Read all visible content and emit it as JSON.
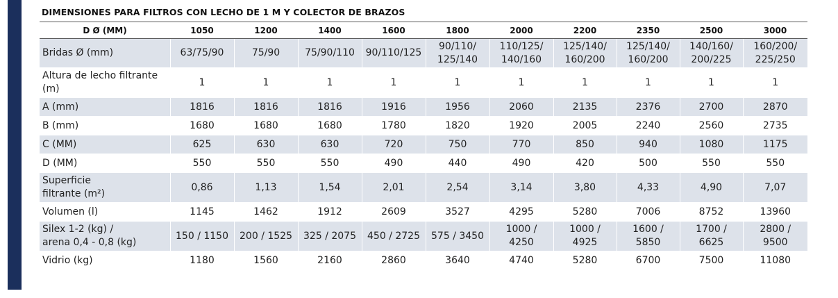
{
  "title": "DIMENSIONES PARA FILTROS CON LECHO DE 1 M Y COLECTOR DE BRAZOS",
  "header": {
    "label": "D Ø (MM)",
    "diameters": [
      "1050",
      "1200",
      "1400",
      "1600",
      "1800",
      "2000",
      "2200",
      "2350",
      "2500",
      "3000"
    ]
  },
  "rows": [
    {
      "label": "Bridas Ø (mm)",
      "values": [
        "63/75/90",
        "75/90",
        "75/90/110",
        "90/110/125",
        "90/110/\n125/140",
        "110/125/\n140/160",
        "125/140/\n160/200",
        "125/140/\n160/200",
        "140/160/\n200/225",
        "160/200/\n225/250"
      ]
    },
    {
      "label": "Altura de lecho filtrante\n(m)",
      "values": [
        "1",
        "1",
        "1",
        "1",
        "1",
        "1",
        "1",
        "1",
        "1",
        "1"
      ]
    },
    {
      "label": "A (mm)",
      "values": [
        "1816",
        "1816",
        "1816",
        "1916",
        "1956",
        "2060",
        "2135",
        "2376",
        "2700",
        "2870"
      ]
    },
    {
      "label": "B (mm)",
      "values": [
        "1680",
        "1680",
        "1680",
        "1780",
        "1820",
        "1920",
        "2005",
        "2240",
        "2560",
        "2735"
      ]
    },
    {
      "label": "C (MM)",
      "values": [
        "625",
        "630",
        "630",
        "720",
        "750",
        "770",
        "850",
        "940",
        "1080",
        "1175"
      ]
    },
    {
      "label": "D (MM)",
      "values": [
        "550",
        "550",
        "550",
        "490",
        "440",
        "490",
        "420",
        "500",
        "550",
        "550"
      ]
    },
    {
      "label": "Superficie\nfiltrante (m²)",
      "values": [
        "0,86",
        "1,13",
        "1,54",
        "2,01",
        "2,54",
        "3,14",
        "3,80",
        "4,33",
        "4,90",
        "7,07"
      ]
    },
    {
      "label": "Volumen (l)",
      "values": [
        "1145",
        "1462",
        "1912",
        "2609",
        "3527",
        "4295",
        "5280",
        "7006",
        "8752",
        "13960"
      ]
    },
    {
      "label": "Silex 1-2 (kg) /\narena 0,4 - 0,8 (kg)",
      "values": [
        "150 / 1150",
        "200 / 1525",
        "325 / 2075",
        "450 / 2725",
        "575 / 3450",
        "1000 /\n4250",
        "1000 /\n4925",
        "1600 /\n5850",
        "1700 /\n6625",
        "2800 /\n9500"
      ]
    },
    {
      "label": "Vidrio (kg)",
      "values": [
        "1180",
        "1560",
        "2160",
        "2860",
        "3640",
        "4740",
        "5280",
        "6700",
        "7500",
        "11080"
      ]
    }
  ],
  "colors": {
    "side_bar": "#1b2f5c",
    "row_shade": "#dde2ea"
  }
}
